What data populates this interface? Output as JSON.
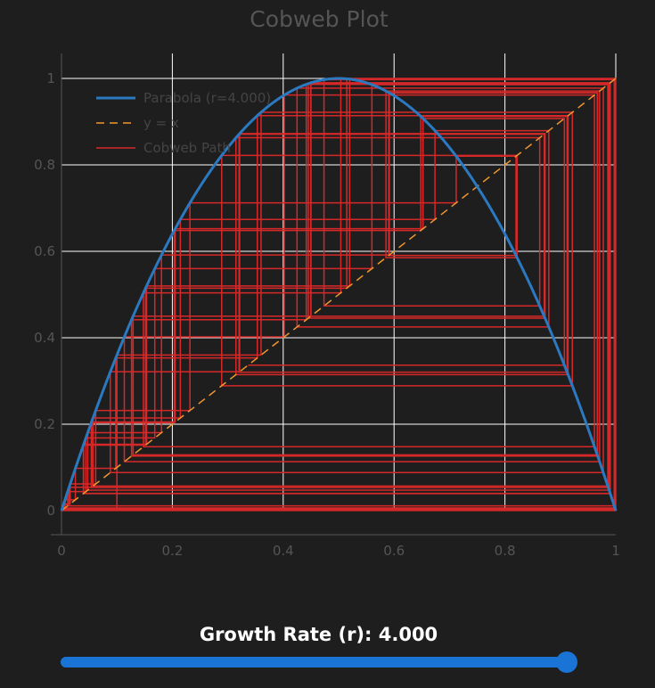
{
  "chart_data": {
    "type": "line",
    "title": "Cobweb Plot",
    "xlabel": "",
    "ylabel": "",
    "xlim": [
      0,
      1
    ],
    "ylim": [
      0,
      1
    ],
    "x_ticks": [
      "0",
      "0.2",
      "0.4",
      "0.6",
      "0.8",
      "1"
    ],
    "y_ticks": [
      "0",
      "0.2",
      "0.4",
      "0.6",
      "0.8",
      "1"
    ],
    "grid": true,
    "legend_position": "top-left",
    "r": 4.0,
    "x0": 0.1,
    "iterations": 80,
    "series": [
      {
        "name": "Parabola (r=4.000)",
        "color": "#2b79c0",
        "style": "solid",
        "function": "logistic"
      },
      {
        "name": "y = x",
        "color": "#f09630",
        "style": "dashed",
        "function": "identity"
      },
      {
        "name": "Cobweb Path",
        "color": "#d62828",
        "style": "solid",
        "function": "cobweb"
      }
    ]
  },
  "slider": {
    "label": "Growth Rate (r): 4.000",
    "value": 4.0,
    "min": 0,
    "max": 4,
    "fill_color": "#1a74d6"
  }
}
